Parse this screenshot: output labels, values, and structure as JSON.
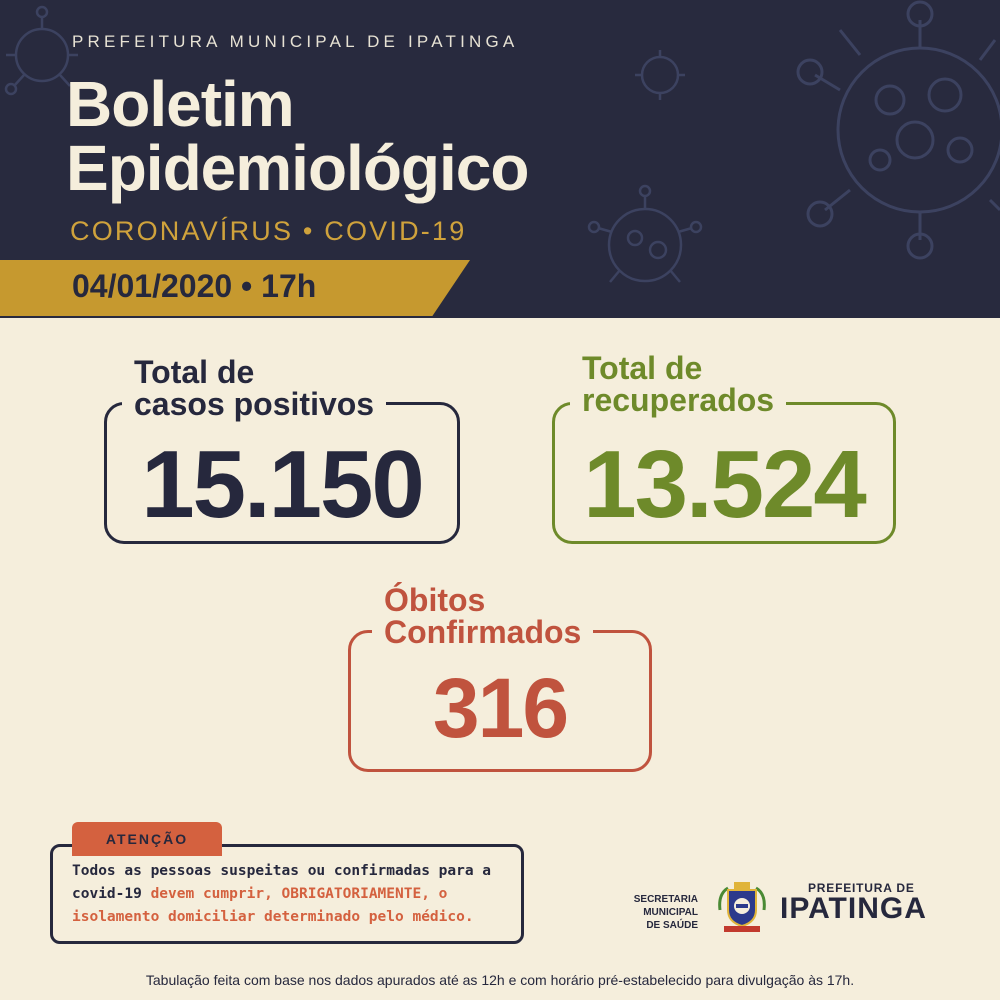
{
  "header": {
    "org": "PREFEITURA MUNICIPAL DE IPATINGA",
    "title_line1": "Boletim",
    "title_line2": "Epidemiológico",
    "subtitle": "CORONAVÍRUS • COVID-19",
    "date": "04/01/2020 • 17h"
  },
  "stats": {
    "positivos": {
      "label_line1": "Total de",
      "label_line2": "casos positivos",
      "value": "15.150"
    },
    "recuperados": {
      "label_line1": "Total de",
      "label_line2": "recuperados",
      "value": "13.524"
    },
    "obitos": {
      "label_line1": "Óbitos",
      "label_line2": "Confirmados",
      "value": "316"
    }
  },
  "alert": {
    "tag": "ATENÇÃO",
    "text_part1": "Todos as pessoas suspeitas ou confirmadas para a covid-19 ",
    "text_highlight": "devem cumprir, OBRIGATORIAMENTE, o isolamento domiciliar determinado pelo médico."
  },
  "logos": {
    "secretaria_line1": "SECRETARIA MUNICIPAL",
    "secretaria_line2": "DE SAÚDE",
    "prefeitura_small": "PREFEITURA DE",
    "prefeitura_big": "IPATINGA"
  },
  "footer": "Tabulação feita com base nos dados apurados até as 12h e com horário pré-estabelecido para divulgação às 17h.",
  "colors": {
    "navy": "#282a3e",
    "cream": "#f5eedc",
    "gold": "#c6992f",
    "green": "#6e8a2a",
    "red": "#c0533e"
  },
  "icons": [
    "virus-icon",
    "crest-icon"
  ]
}
